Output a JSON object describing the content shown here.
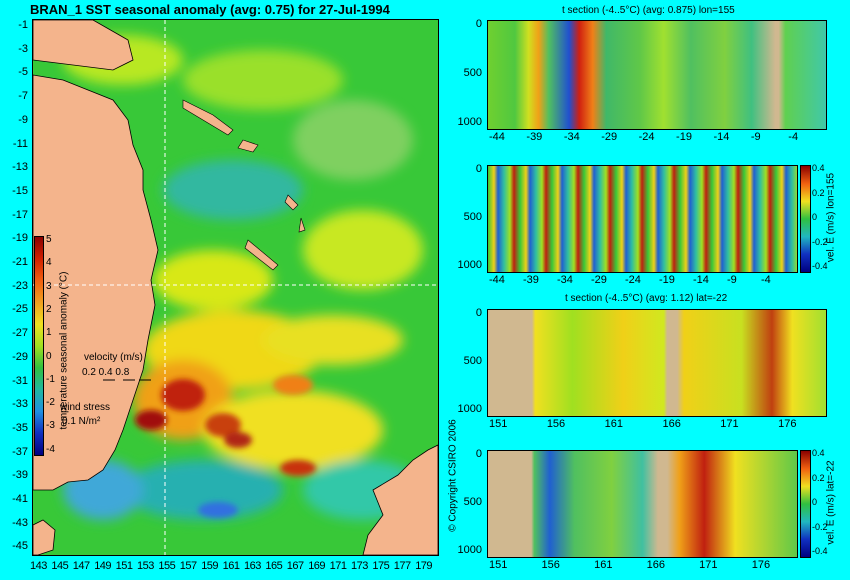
{
  "map": {
    "title": "BRAN_1 SST seasonal anomaly (avg: 0.75) for 27-Jul-1994",
    "lat_labels": [
      "-1",
      "-3",
      "-5",
      "-7",
      "-9",
      "-11",
      "-13",
      "-15",
      "-17",
      "-19",
      "-21",
      "-23",
      "-25",
      "-27",
      "-29",
      "-31",
      "-33",
      "-35",
      "-37",
      "-39",
      "-41",
      "-43",
      "-45"
    ],
    "lon_labels": [
      "143",
      "145",
      "147",
      "149",
      "151",
      "153",
      "155",
      "157",
      "159",
      "161",
      "163",
      "165",
      "167",
      "169",
      "171",
      "173",
      "175",
      "177",
      "179"
    ],
    "colorbar": {
      "label": "temperature seasonal anomaly (°C)",
      "ticks": [
        "5",
        "4",
        "3",
        "2",
        "1",
        "0",
        "-1",
        "-2",
        "-3",
        "-4"
      ]
    },
    "velocity_legend": {
      "label": "velocity (m/s)",
      "values": "0.2 0.4 0.8"
    },
    "wind_legend": {
      "label": "wind stress",
      "value": "0.1 N/m²"
    },
    "copyright": "© Copyright CSIRO 2006",
    "colors": {
      "land": "#f4b48c",
      "ocean_base": "#38c838"
    }
  },
  "sections": [
    {
      "title": "t section (-4..5°C) (avg: 0.875) lon=155",
      "y_ticks": [
        "0",
        "500",
        "1000"
      ],
      "x_ticks": [
        "-44",
        "-39",
        "-34",
        "-29",
        "-24",
        "-19",
        "-14",
        "-9",
        "-4"
      ]
    },
    {
      "title": "",
      "side_label": "vel. E (m/s) lon=155",
      "y_ticks": [
        "0",
        "500",
        "1000"
      ],
      "x_ticks": [
        "-44",
        "-39",
        "-34",
        "-29",
        "-24",
        "-19",
        "-14",
        "-9",
        "-4"
      ],
      "colorbar_ticks": [
        "0.4",
        "0.2",
        "0",
        "-0.2",
        "-0.4"
      ]
    },
    {
      "title": "t section (-4..5°C) (avg: 1.12) lat=-22",
      "y_ticks": [
        "0",
        "500",
        "1000"
      ],
      "x_ticks": [
        "151",
        "156",
        "161",
        "166",
        "171",
        "176"
      ]
    },
    {
      "title": "",
      "side_label": "vel. E (m/s) lat=-22",
      "y_ticks": [
        "0",
        "500",
        "1000"
      ],
      "x_ticks": [
        "151",
        "156",
        "161",
        "166",
        "171",
        "176"
      ],
      "colorbar_ticks": [
        "0.4",
        "0.2",
        "0",
        "-0.2",
        "-0.4"
      ]
    }
  ]
}
